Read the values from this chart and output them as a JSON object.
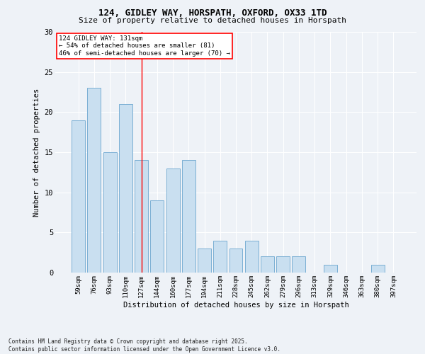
{
  "title1": "124, GIDLEY WAY, HORSPATH, OXFORD, OX33 1TD",
  "title2": "Size of property relative to detached houses in Horspath",
  "xlabel": "Distribution of detached houses by size in Horspath",
  "ylabel": "Number of detached properties",
  "categories": [
    "59sqm",
    "76sqm",
    "93sqm",
    "110sqm",
    "127sqm",
    "144sqm",
    "160sqm",
    "177sqm",
    "194sqm",
    "211sqm",
    "228sqm",
    "245sqm",
    "262sqm",
    "279sqm",
    "296sqm",
    "313sqm",
    "329sqm",
    "346sqm",
    "363sqm",
    "380sqm",
    "397sqm"
  ],
  "values": [
    19,
    23,
    15,
    21,
    14,
    9,
    13,
    14,
    3,
    4,
    3,
    4,
    2,
    2,
    2,
    0,
    1,
    0,
    0,
    1,
    0
  ],
  "bar_color": "#c9dff0",
  "bar_edge_color": "#7aafd4",
  "background_color": "#eef2f7",
  "grid_color": "#ffffff",
  "vline_x": 4,
  "vline_color": "red",
  "annotation_title": "124 GIDLEY WAY: 131sqm",
  "annotation_line2": "← 54% of detached houses are smaller (81)",
  "annotation_line3": "46% of semi-detached houses are larger (70) →",
  "annotation_box_color": "red",
  "ylim": [
    0,
    30
  ],
  "yticks": [
    0,
    5,
    10,
    15,
    20,
    25,
    30
  ],
  "footer": "Contains HM Land Registry data © Crown copyright and database right 2025.\nContains public sector information licensed under the Open Government Licence v3.0."
}
